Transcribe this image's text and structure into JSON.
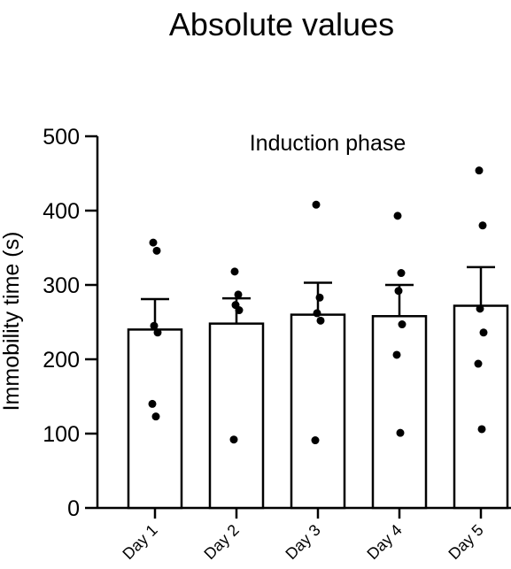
{
  "chart_data": {
    "type": "bar",
    "title": "Absolute values",
    "annotation": "Induction phase",
    "xlabel": "",
    "ylabel": "Immobility time (s)",
    "ylim": [
      0,
      500
    ],
    "yticks": [
      "0",
      "100",
      "200",
      "300",
      "400",
      "500"
    ],
    "categories": [
      "Day 1",
      "Day 2",
      "Day 3",
      "Day 4",
      "Day 5"
    ],
    "values": [
      240,
      248,
      260,
      258,
      272
    ],
    "error_upper": [
      281,
      282,
      303,
      300,
      324
    ],
    "points": [
      [
        357,
        346,
        245,
        236,
        140,
        123
      ],
      [
        318,
        287,
        273,
        266,
        92
      ],
      [
        408,
        283,
        262,
        252,
        91
      ],
      [
        393,
        316,
        292,
        247,
        206,
        101
      ],
      [
        454,
        380,
        268,
        236,
        194,
        106
      ]
    ],
    "grid": false,
    "legend": "none",
    "bar_fill": "#ffffff",
    "bar_stroke": "#000000",
    "point_color": "#000000"
  }
}
